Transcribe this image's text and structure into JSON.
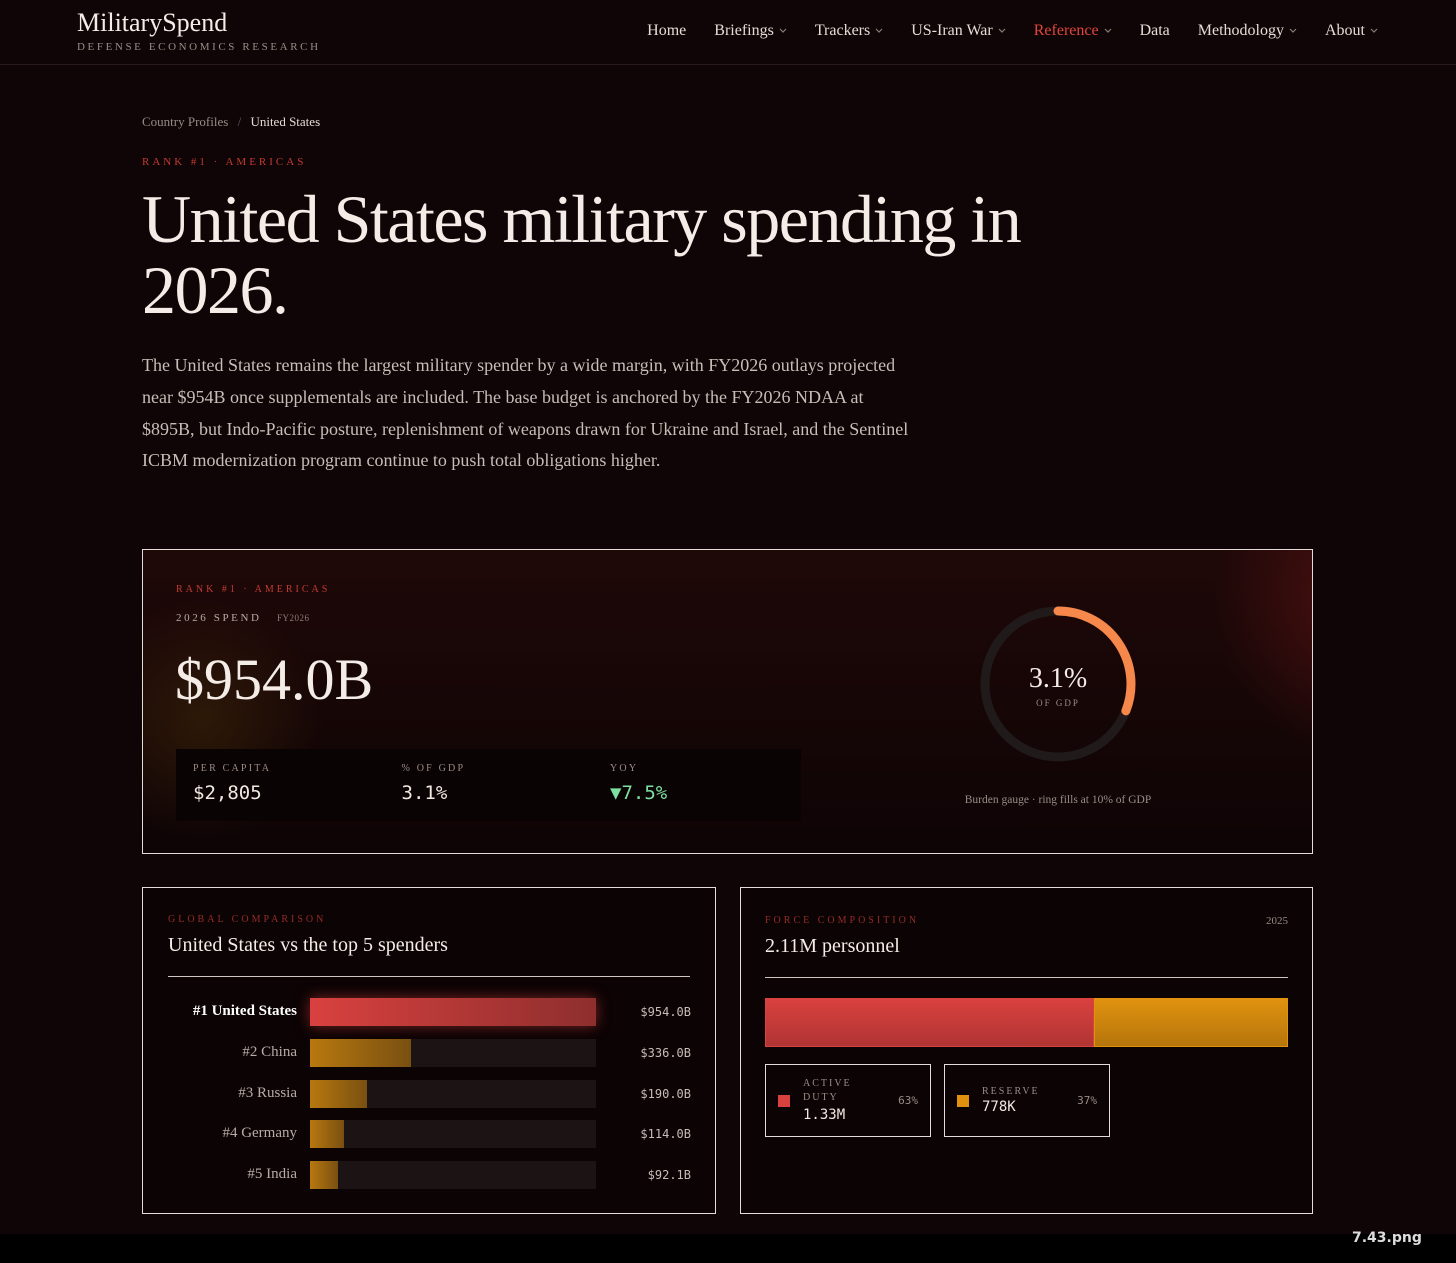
{
  "nav": {
    "brand": "MilitarySpend",
    "tagline": "DEFENSE ECONOMICS RESEARCH",
    "links": [
      {
        "label": "Home",
        "dropdown": false,
        "active": false
      },
      {
        "label": "Briefings",
        "dropdown": true,
        "active": false
      },
      {
        "label": "Trackers",
        "dropdown": true,
        "active": false
      },
      {
        "label": "US-Iran War",
        "dropdown": true,
        "active": false
      },
      {
        "label": "Reference",
        "dropdown": true,
        "active": true
      },
      {
        "label": "Data",
        "dropdown": false,
        "active": false
      },
      {
        "label": "Methodology",
        "dropdown": true,
        "active": false
      },
      {
        "label": "About",
        "dropdown": true,
        "active": false
      }
    ]
  },
  "breadcrumb": [
    "Country Profiles",
    "United States"
  ],
  "hero": {
    "eyebrow": "RANK #1 · AMERICAS",
    "title": "United States military spending in 2026.",
    "body": "The United States remains the largest military spender by a wide margin, with FY2026 outlays projected near $954B once supplementals are included. The base budget is anchored by the FY2026 NDAA at $895B, but Indo-Pacific posture, replenishment of weapons drawn for Ukraine and Israel, and the Sentinel ICBM modernization program continue to push total obligations higher."
  },
  "spend_card": {
    "eyebrow": "RANK #1 · AMERICAS",
    "label": "2026 SPEND",
    "fiscal_year": "FY2026",
    "amount": "$954.0B",
    "stats": [
      {
        "label": "PER CAPITA",
        "value": "$2,805",
        "color": "#f2e8e2"
      },
      {
        "label": "% OF GDP",
        "value": "3.1%",
        "color": "#f2e8e2"
      },
      {
        "label": "YOY",
        "value": "▼7.5%",
        "color": "#7ee0a0"
      }
    ],
    "gauge": {
      "type": "gauge",
      "value": 3.1,
      "value_label": "3.1%",
      "max": 10,
      "unit": "OF GDP",
      "color": "#f5884a",
      "caption": "Burden gauge · ring fills at 10% of GDP"
    }
  },
  "comparison": {
    "type": "bar",
    "eyebrow": "GLOBAL COMPARISON",
    "title": "United States vs the top 5 spenders",
    "categories": [
      "#1 United States",
      "#2 China",
      "#3 Russia",
      "#4 Germany",
      "#5 India"
    ],
    "values": [
      954.0,
      336.0,
      190.0,
      114.0,
      92.1
    ],
    "value_labels": [
      "$954.0B",
      "$336.0B",
      "$190.0B",
      "$114.0B",
      "$92.1B"
    ],
    "highlight": 0,
    "highlight_color": "#d9413f",
    "color": "#b8780f"
  },
  "force": {
    "type": "stacked-bar",
    "eyebrow": "FORCE COMPOSITION",
    "year": "2025",
    "title": "2.11M personnel",
    "series": [
      {
        "name": "ACTIVE DUTY",
        "color": "#d9413f",
        "values": [
          1330000
        ],
        "value_labels": [
          "1.33M"
        ],
        "share": 63,
        "share_label": "63%"
      },
      {
        "name": "RESERVE",
        "color": "#e0920e",
        "values": [
          778000
        ],
        "value_labels": [
          "778K"
        ],
        "share": 37,
        "share_label": "37%"
      }
    ]
  },
  "file_label": "7.43.png"
}
